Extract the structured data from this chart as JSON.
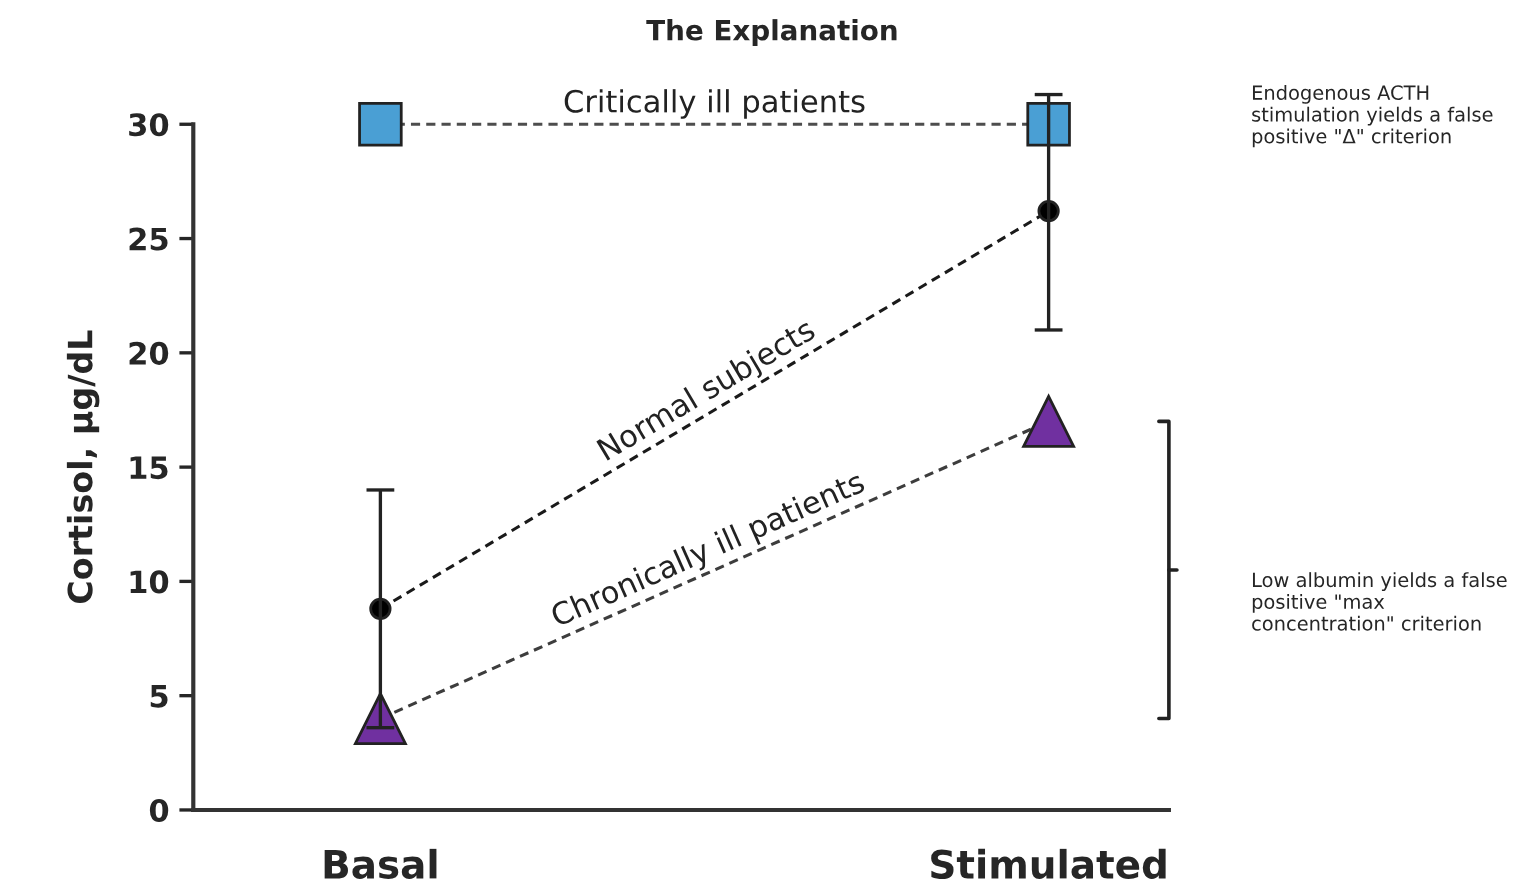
{
  "chart_data": {
    "type": "line",
    "title": "The Explanation",
    "ylabel": "Cortisol, µg/dL",
    "categories": [
      "Basal",
      "Stimulated"
    ],
    "series": [
      {
        "name": "Critically ill patients",
        "color": "#4d4d4d",
        "colors": [
          "#4a9fd4",
          "#4a9fd4"
        ],
        "marker": "square",
        "values": [
          30,
          30
        ]
      },
      {
        "name": "Normal subjects",
        "color": "#1a1a1a",
        "colors": [
          "#000000",
          "#000000"
        ],
        "marker": "circle",
        "values": [
          8.8,
          26.2
        ],
        "errors": [
          [
            3.6,
            14
          ],
          [
            21,
            31.3
          ]
        ]
      },
      {
        "name": "Chronically ill patients",
        "color": "#3d3d3d",
        "colors": [
          "#7030a0",
          "#7030a0"
        ],
        "marker": "triangle",
        "values": [
          4,
          17
        ]
      }
    ],
    "line_style": "dashed",
    "legend": false,
    "ylim": [
      0,
      30
    ],
    "yticks": [
      0,
      5,
      10,
      15,
      20,
      25,
      30
    ],
    "annotations": [
      "Endogenous ACTH stimulation yields a false positive \"Δ\" criterion",
      "Low albumin yields a false positive \"max concentration\" criterion"
    ]
  }
}
